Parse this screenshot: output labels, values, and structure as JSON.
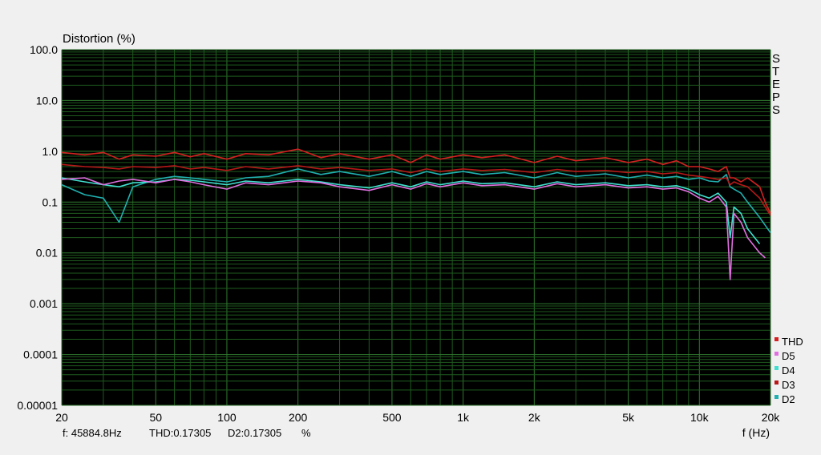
{
  "chart_data": {
    "type": "line",
    "title": "Distortion (%)",
    "xlabel": "f (Hz)",
    "ylabel": "Distortion (%)",
    "xscale": "log",
    "yscale": "log",
    "xlim": [
      20,
      20000
    ],
    "ylim": [
      1e-05,
      100
    ],
    "grid": true,
    "legend_position": "bottom-right",
    "y_ticks": [
      {
        "v": 100,
        "label": "100.0"
      },
      {
        "v": 10,
        "label": "10.0"
      },
      {
        "v": 1,
        "label": "1.0"
      },
      {
        "v": 0.1,
        "label": "0.1"
      },
      {
        "v": 0.01,
        "label": "0.01"
      },
      {
        "v": 0.001,
        "label": "0.001"
      },
      {
        "v": 0.0001,
        "label": "0.0001"
      },
      {
        "v": 1e-05,
        "label": "0.00001"
      }
    ],
    "x_ticks": [
      {
        "v": 20,
        "label": "20"
      },
      {
        "v": 50,
        "label": "50"
      },
      {
        "v": 100,
        "label": "100"
      },
      {
        "v": 200,
        "label": "200"
      },
      {
        "v": 500,
        "label": "500"
      },
      {
        "v": 1000,
        "label": "1k"
      },
      {
        "v": 2000,
        "label": "2k"
      },
      {
        "v": 5000,
        "label": "5k"
      },
      {
        "v": 10000,
        "label": "10k"
      },
      {
        "v": 20000,
        "label": "20k"
      }
    ],
    "x": [
      20,
      25,
      30,
      35,
      40,
      50,
      60,
      70,
      80,
      100,
      120,
      150,
      200,
      250,
      300,
      400,
      500,
      600,
      700,
      800,
      1000,
      1200,
      1500,
      2000,
      2500,
      3000,
      4000,
      5000,
      6000,
      7000,
      8000,
      9000,
      10000,
      11000,
      12000,
      13000,
      13500,
      14000,
      15000,
      16000,
      18000,
      19000,
      20000
    ],
    "series": [
      {
        "name": "THD",
        "color": "#d42020",
        "values": [
          0.95,
          0.85,
          0.95,
          0.7,
          0.85,
          0.8,
          0.95,
          0.78,
          0.9,
          0.7,
          0.9,
          0.85,
          1.1,
          0.75,
          0.9,
          0.7,
          0.85,
          0.6,
          0.85,
          0.7,
          0.85,
          0.75,
          0.85,
          0.6,
          0.8,
          0.65,
          0.75,
          0.6,
          0.7,
          0.55,
          0.65,
          0.5,
          0.5,
          0.45,
          0.4,
          0.5,
          0.3,
          0.3,
          0.25,
          0.3,
          0.2,
          0.1,
          0.06
        ]
      },
      {
        "name": "D5",
        "color": "#e070e0",
        "values": [
          0.28,
          0.3,
          0.22,
          0.26,
          0.28,
          0.24,
          0.28,
          0.25,
          0.22,
          0.18,
          0.24,
          0.22,
          0.26,
          0.24,
          0.2,
          0.17,
          0.22,
          0.18,
          0.23,
          0.2,
          0.24,
          0.21,
          0.22,
          0.18,
          0.23,
          0.2,
          0.22,
          0.19,
          0.2,
          0.18,
          0.19,
          0.16,
          0.12,
          0.1,
          0.13,
          0.08,
          0.003,
          0.06,
          0.04,
          0.02,
          0.01,
          0.008,
          null
        ]
      },
      {
        "name": "D4",
        "color": "#40e0d0",
        "values": [
          0.3,
          0.25,
          0.22,
          0.2,
          0.24,
          0.25,
          0.28,
          0.27,
          0.25,
          0.22,
          0.26,
          0.24,
          0.28,
          0.25,
          0.22,
          0.19,
          0.24,
          0.2,
          0.25,
          0.22,
          0.26,
          0.23,
          0.24,
          0.2,
          0.25,
          0.22,
          0.24,
          0.21,
          0.22,
          0.2,
          0.21,
          0.18,
          0.14,
          0.12,
          0.15,
          0.1,
          0.02,
          0.08,
          0.06,
          0.03,
          0.015,
          null,
          null
        ]
      },
      {
        "name": "D3",
        "color": "#b81818",
        "values": [
          0.55,
          0.5,
          0.48,
          0.45,
          0.5,
          0.48,
          0.52,
          0.45,
          0.48,
          0.42,
          0.5,
          0.45,
          0.52,
          0.45,
          0.48,
          0.42,
          0.45,
          0.38,
          0.45,
          0.4,
          0.45,
          0.42,
          0.44,
          0.38,
          0.44,
          0.4,
          0.42,
          0.38,
          0.4,
          0.36,
          0.38,
          0.34,
          0.32,
          0.3,
          0.28,
          0.3,
          0.22,
          0.25,
          0.22,
          0.2,
          0.12,
          0.08,
          0.055
        ]
      },
      {
        "name": "D2",
        "color": "#20b0b0",
        "values": [
          0.22,
          0.14,
          0.12,
          0.04,
          0.2,
          0.28,
          0.32,
          0.3,
          0.28,
          0.25,
          0.3,
          0.32,
          0.45,
          0.35,
          0.4,
          0.32,
          0.4,
          0.32,
          0.4,
          0.35,
          0.4,
          0.35,
          0.38,
          0.3,
          0.38,
          0.32,
          0.36,
          0.3,
          0.34,
          0.3,
          0.32,
          0.28,
          0.3,
          0.26,
          0.25,
          0.35,
          0.2,
          0.18,
          0.15,
          0.1,
          0.05,
          0.035,
          0.025
        ]
      }
    ]
  },
  "side_label": "STEPS",
  "status": {
    "freq": "f: 45884.8Hz",
    "thd": "THD:0.17305",
    "d2": "D2:0.17305",
    "unit": "%"
  }
}
